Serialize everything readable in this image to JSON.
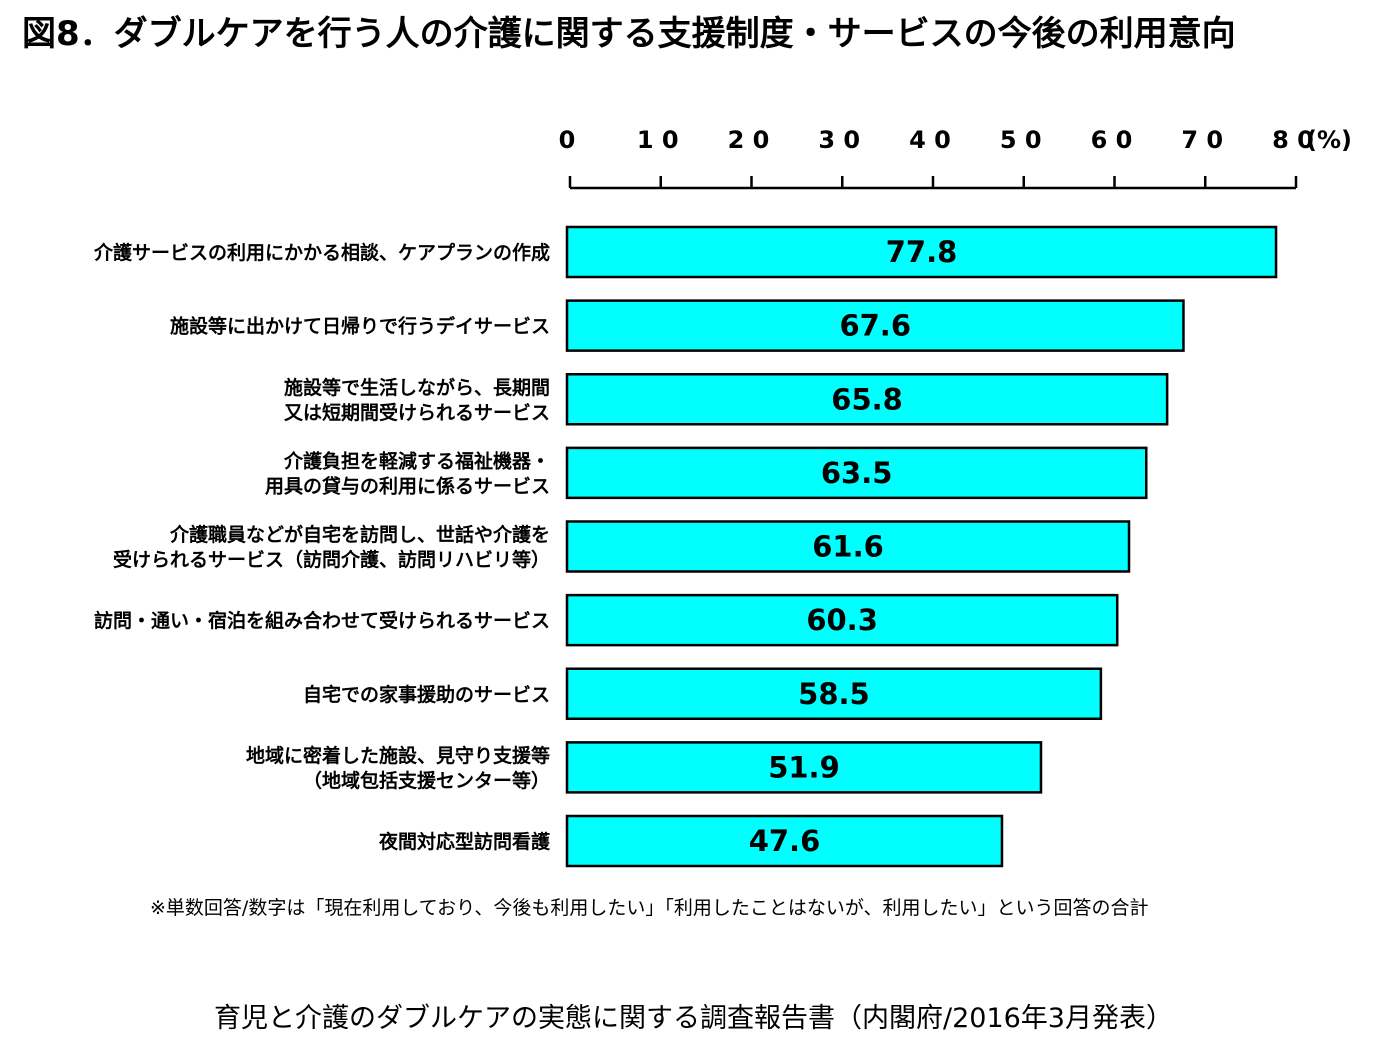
{
  "title": "図8．ダブルケアを行う人の介護に関する支援制度・サービスの今後の利用意向",
  "note": "※単数回答/数字は「現在利用しており、今後も利用したい」「利用したことはないが、利用したい」という回答の合計",
  "source": "育児と介護のダブルケアの実態に関する調査報告書（内閣府/2016年3月発表）",
  "colors": {
    "bar_fill": "#00FFFF",
    "bar_stroke": "#000000"
  },
  "chart_data": {
    "type": "bar",
    "orientation": "horizontal",
    "categories": [
      [
        "介護サービスの利用にかかる相談、ケアプランの作成"
      ],
      [
        "施設等に出かけて日帰りで行うデイサービス"
      ],
      [
        "施設等で生活しながら、長期間",
        "又は短期間受けられるサービス"
      ],
      [
        "介護負担を軽減する福祉機器・",
        "用具の貸与の利用に係るサービス"
      ],
      [
        "介護職員などが自宅を訪問し、世話や介護を",
        "受けられるサービス（訪問介護、訪問リハビリ等）"
      ],
      [
        "訪問・通い・宿泊を組み合わせて受けられるサービス"
      ],
      [
        "自宅での家事援助のサービス"
      ],
      [
        "地域に密着した施設、見守り支援等",
        "（地域包括支援センター等）"
      ],
      [
        "夜間対応型訪問看護"
      ]
    ],
    "values": [
      77.8,
      67.6,
      65.8,
      63.5,
      61.6,
      60.3,
      58.5,
      51.9,
      47.6
    ],
    "value_labels": [
      "77.8",
      "67.6",
      "65.8",
      "63.5",
      "61.6",
      "60.3",
      "58.5",
      "51.9",
      "47.6"
    ],
    "xlim": [
      0,
      80
    ],
    "xticks": [
      0,
      10,
      20,
      30,
      40,
      50,
      60,
      70,
      80
    ],
    "xtick_labels": [
      "0",
      "1 0",
      "2 0",
      "3 0",
      "4 0",
      "5 0",
      "6 0",
      "7 0",
      "8 0"
    ],
    "unit": "(%)",
    "axis_position": "top",
    "grid": false,
    "legend": "none"
  }
}
